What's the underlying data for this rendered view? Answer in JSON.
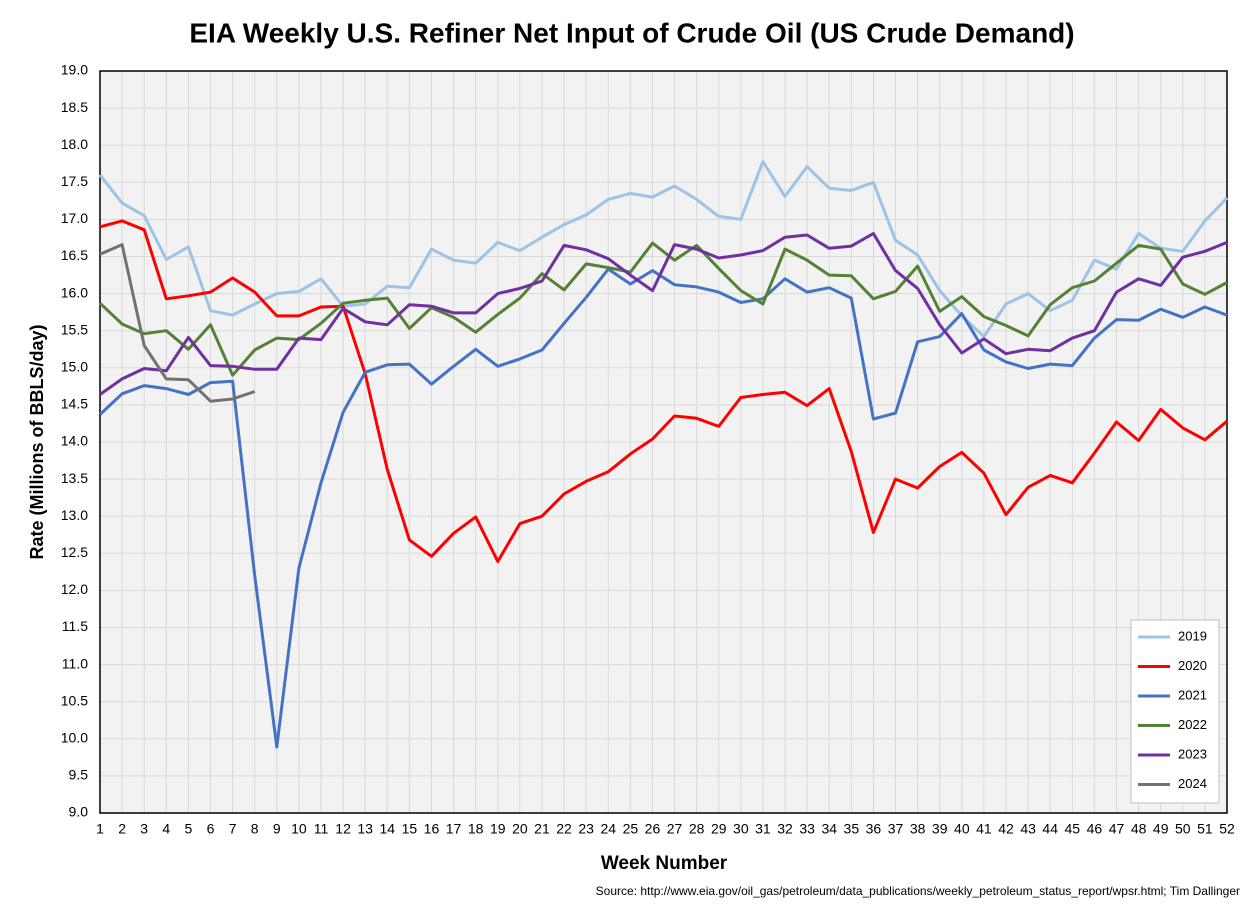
{
  "chart_data": {
    "type": "line",
    "title": "EIA Weekly U.S. Refiner Net Input of Crude Oil (US Crude Demand)",
    "x_label": "Week Number",
    "y_label": "Rate (Millions of BBLS/day)",
    "source": "Source: http://www.eia.gov/oil_gas/petroleum/data_publications/weekly_petroleum_status_report/wpsr.html; Tim Dallinger",
    "x": [
      1,
      2,
      3,
      4,
      5,
      6,
      7,
      8,
      9,
      10,
      11,
      12,
      13,
      14,
      15,
      16,
      17,
      18,
      19,
      20,
      21,
      22,
      23,
      24,
      25,
      26,
      27,
      28,
      29,
      30,
      31,
      32,
      33,
      34,
      35,
      36,
      37,
      38,
      39,
      40,
      41,
      42,
      43,
      44,
      45,
      46,
      47,
      48,
      49,
      50,
      51,
      52
    ],
    "xlim": [
      1,
      52
    ],
    "xticks": [
      1,
      2,
      3,
      4,
      5,
      6,
      7,
      8,
      9,
      10,
      11,
      12,
      13,
      14,
      15,
      16,
      17,
      18,
      19,
      20,
      21,
      22,
      23,
      24,
      25,
      26,
      27,
      28,
      29,
      30,
      31,
      32,
      33,
      34,
      35,
      36,
      37,
      38,
      39,
      40,
      41,
      42,
      43,
      44,
      45,
      46,
      47,
      48,
      49,
      50,
      51,
      52
    ],
    "ylim": [
      9,
      19
    ],
    "yticks": [
      {
        "value": 9,
        "label": "9.0"
      },
      9.5,
      {
        "value": 10,
        "label": "10.0"
      },
      10.5,
      {
        "value": 11,
        "label": "11.0"
      },
      11.5,
      {
        "value": 12,
        "label": "12.0"
      },
      12.5,
      {
        "value": 13,
        "label": "13.0"
      },
      13.5,
      {
        "value": 14,
        "label": "14.0"
      },
      14.5,
      {
        "value": 15,
        "label": "15.0"
      },
      15.5,
      {
        "value": 16,
        "label": "16.0"
      },
      16.5,
      {
        "value": 17,
        "label": "17.0"
      },
      17.5,
      {
        "value": 18,
        "label": "18.0"
      },
      18.5,
      {
        "value": 19,
        "label": "19.0"
      }
    ],
    "grid": true,
    "legend": "lower right",
    "series": [
      {
        "name": "2019",
        "color": "#9dc3e6",
        "values": [
          17.6,
          17.22,
          17.05,
          16.46,
          16.63,
          15.77,
          15.71,
          15.86,
          16.0,
          16.03,
          16.2,
          15.83,
          15.86,
          16.1,
          16.08,
          16.6,
          16.45,
          16.41,
          16.69,
          16.58,
          16.76,
          16.93,
          17.06,
          17.27,
          17.35,
          17.3,
          17.45,
          17.27,
          17.04,
          17.0,
          17.78,
          17.31,
          17.71,
          17.42,
          17.39,
          17.5,
          16.72,
          16.52,
          16.04,
          15.7,
          15.42,
          15.86,
          16.0,
          15.77,
          15.91,
          16.45,
          16.33,
          16.81,
          16.61,
          16.57,
          16.98,
          17.29
        ]
      },
      {
        "name": "2020",
        "color": "#ff0000",
        "values": [
          16.9,
          16.98,
          16.86,
          15.93,
          15.97,
          16.02,
          16.21,
          16.02,
          15.7,
          15.7,
          15.82,
          15.83,
          14.92,
          13.63,
          12.68,
          12.46,
          12.77,
          12.99,
          12.39,
          12.9,
          13.0,
          13.3,
          13.47,
          13.6,
          13.84,
          14.04,
          14.35,
          14.32,
          14.21,
          14.6,
          14.64,
          14.67,
          14.49,
          14.72,
          13.87,
          12.78,
          13.5,
          13.38,
          13.67,
          13.86,
          13.58,
          13.02,
          13.39,
          13.55,
          13.45,
          13.85,
          14.27,
          14.02,
          14.44,
          14.19,
          14.03,
          14.28
        ]
      },
      {
        "name": "2021",
        "color": "#4472c4",
        "values": [
          14.37,
          14.65,
          14.76,
          14.72,
          14.64,
          14.8,
          14.82,
          12.2,
          9.89,
          12.3,
          13.45,
          14.4,
          14.94,
          15.04,
          15.05,
          14.78,
          15.02,
          15.25,
          15.02,
          15.12,
          15.24,
          15.6,
          15.95,
          16.33,
          16.13,
          16.31,
          16.12,
          16.09,
          16.02,
          15.88,
          15.93,
          16.2,
          16.02,
          16.08,
          15.94,
          14.31,
          14.39,
          15.35,
          15.42,
          15.73,
          15.24,
          15.08,
          14.99,
          15.05,
          15.03,
          15.4,
          15.65,
          15.64,
          15.79,
          15.68,
          15.82,
          15.71
        ]
      },
      {
        "name": "2022",
        "color": "#548235",
        "values": [
          15.87,
          15.59,
          15.46,
          15.5,
          15.25,
          15.58,
          14.9,
          15.24,
          15.4,
          15.38,
          15.6,
          15.87,
          15.91,
          15.94,
          15.53,
          15.81,
          15.68,
          15.48,
          15.72,
          15.94,
          16.27,
          16.05,
          16.4,
          16.35,
          16.29,
          16.68,
          16.45,
          16.65,
          16.34,
          16.04,
          15.86,
          16.6,
          16.45,
          16.25,
          16.24,
          15.93,
          16.03,
          16.37,
          15.76,
          15.96,
          15.69,
          15.57,
          15.43,
          15.85,
          16.08,
          16.17,
          16.41,
          16.65,
          16.6,
          16.13,
          15.99,
          16.15
        ]
      },
      {
        "name": "2023",
        "color": "#7030a0",
        "values": [
          14.64,
          14.85,
          14.99,
          14.96,
          15.41,
          15.03,
          15.02,
          14.98,
          14.98,
          15.4,
          15.38,
          15.8,
          15.62,
          15.58,
          15.85,
          15.83,
          15.74,
          15.74,
          16.0,
          16.07,
          16.17,
          16.65,
          16.59,
          16.47,
          16.25,
          16.04,
          16.66,
          16.6,
          16.48,
          16.52,
          16.58,
          16.76,
          16.79,
          16.61,
          16.64,
          16.81,
          16.31,
          16.07,
          15.58,
          15.2,
          15.39,
          15.19,
          15.25,
          15.23,
          15.4,
          15.5,
          16.02,
          16.2,
          16.11,
          16.49,
          16.57,
          16.69
        ]
      },
      {
        "name": "2024",
        "color": "#767171",
        "values": [
          16.53,
          16.66,
          15.3,
          14.85,
          14.84,
          14.55,
          14.58,
          14.68,
          null,
          null,
          null,
          null,
          null,
          null,
          null,
          null,
          null,
          null,
          null,
          null,
          null,
          null,
          null,
          null,
          null,
          null,
          null,
          null,
          null,
          null,
          null,
          null,
          null,
          null,
          null,
          null,
          null,
          null,
          null,
          null,
          null,
          null,
          null,
          null,
          null,
          null,
          null,
          null,
          null,
          null,
          null,
          null
        ]
      }
    ]
  }
}
